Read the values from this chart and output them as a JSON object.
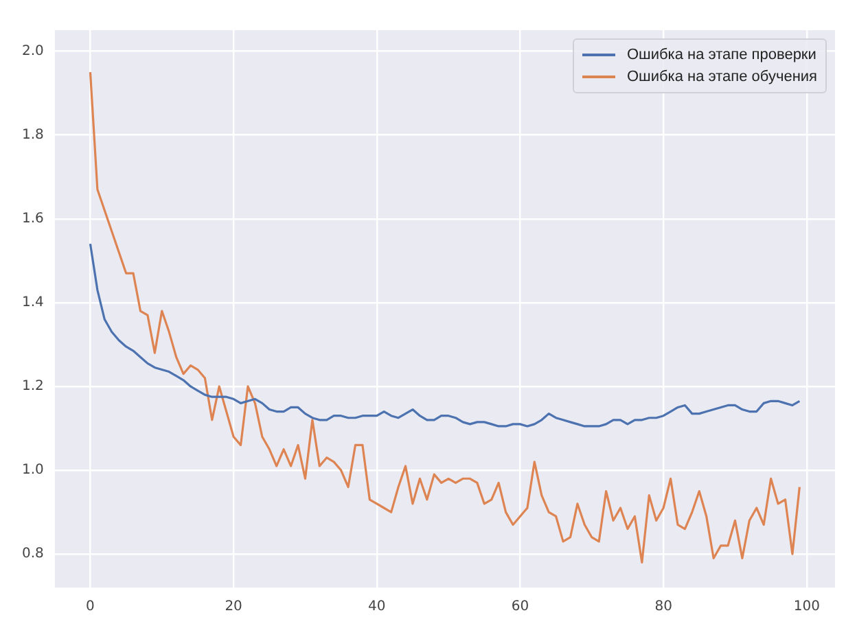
{
  "chart_data": {
    "type": "line",
    "x": [
      0,
      1,
      2,
      3,
      4,
      5,
      6,
      7,
      8,
      9,
      10,
      11,
      12,
      13,
      14,
      15,
      16,
      17,
      18,
      19,
      20,
      21,
      22,
      23,
      24,
      25,
      26,
      27,
      28,
      29,
      30,
      31,
      32,
      33,
      34,
      35,
      36,
      37,
      38,
      39,
      40,
      41,
      42,
      43,
      44,
      45,
      46,
      47,
      48,
      49,
      50,
      51,
      52,
      53,
      54,
      55,
      56,
      57,
      58,
      59,
      60,
      61,
      62,
      63,
      64,
      65,
      66,
      67,
      68,
      69,
      70,
      71,
      72,
      73,
      74,
      75,
      76,
      77,
      78,
      79,
      80,
      81,
      82,
      83,
      84,
      85,
      86,
      87,
      88,
      89,
      90,
      91,
      92,
      93,
      94,
      95,
      96,
      97,
      98,
      99
    ],
    "series": [
      {
        "name": "Ошибка на этапе проверки",
        "color": "#4c72b0",
        "values": [
          1.54,
          1.43,
          1.36,
          1.33,
          1.31,
          1.295,
          1.285,
          1.27,
          1.255,
          1.245,
          1.24,
          1.235,
          1.225,
          1.215,
          1.2,
          1.19,
          1.18,
          1.175,
          1.175,
          1.175,
          1.17,
          1.16,
          1.165,
          1.17,
          1.16,
          1.145,
          1.14,
          1.14,
          1.15,
          1.15,
          1.135,
          1.125,
          1.12,
          1.12,
          1.13,
          1.13,
          1.125,
          1.125,
          1.13,
          1.13,
          1.13,
          1.14,
          1.13,
          1.125,
          1.135,
          1.145,
          1.13,
          1.12,
          1.12,
          1.13,
          1.13,
          1.125,
          1.115,
          1.11,
          1.115,
          1.115,
          1.11,
          1.105,
          1.105,
          1.11,
          1.11,
          1.105,
          1.11,
          1.12,
          1.135,
          1.125,
          1.12,
          1.115,
          1.11,
          1.105,
          1.105,
          1.105,
          1.11,
          1.12,
          1.12,
          1.11,
          1.12,
          1.12,
          1.125,
          1.125,
          1.13,
          1.14,
          1.15,
          1.155,
          1.135,
          1.135,
          1.14,
          1.145,
          1.15,
          1.155,
          1.155,
          1.145,
          1.14,
          1.14,
          1.16,
          1.165,
          1.165,
          1.16,
          1.155,
          1.165
        ]
      },
      {
        "name": "Ошибка на этапе обучения",
        "color": "#dd8452",
        "values": [
          1.95,
          1.67,
          1.62,
          1.57,
          1.52,
          1.47,
          1.47,
          1.38,
          1.37,
          1.28,
          1.38,
          1.33,
          1.27,
          1.23,
          1.25,
          1.24,
          1.22,
          1.12,
          1.2,
          1.14,
          1.08,
          1.06,
          1.2,
          1.16,
          1.08,
          1.05,
          1.01,
          1.05,
          1.01,
          1.06,
          0.98,
          1.12,
          1.01,
          1.03,
          1.02,
          1.0,
          0.96,
          1.06,
          1.06,
          0.93,
          0.92,
          0.91,
          0.9,
          0.96,
          1.01,
          0.92,
          0.98,
          0.93,
          0.99,
          0.97,
          0.98,
          0.97,
          0.98,
          0.98,
          0.97,
          0.92,
          0.93,
          0.97,
          0.9,
          0.87,
          0.89,
          0.91,
          1.02,
          0.94,
          0.9,
          0.89,
          0.83,
          0.84,
          0.92,
          0.87,
          0.84,
          0.83,
          0.95,
          0.88,
          0.91,
          0.86,
          0.89,
          0.78,
          0.94,
          0.88,
          0.91,
          0.98,
          0.87,
          0.86,
          0.9,
          0.95,
          0.89,
          0.79,
          0.82,
          0.82,
          0.88,
          0.79,
          0.88,
          0.91,
          0.87,
          0.98,
          0.92,
          0.93,
          0.8,
          0.96
        ]
      }
    ],
    "xlim": [
      -4.95,
      103.95
    ],
    "xticks": [
      0,
      20,
      40,
      60,
      80,
      100
    ],
    "ylim": [
      0.72,
      2.05
    ],
    "yticks": [
      {
        "value": 0.8,
        "label": "0.8"
      },
      {
        "value": 1.0,
        "label": "1.0"
      },
      {
        "value": 1.2,
        "label": "1.2"
      },
      {
        "value": 1.4,
        "label": "1.4"
      },
      {
        "value": 1.6,
        "label": "1.6"
      },
      {
        "value": 1.8,
        "label": "1.8"
      },
      {
        "value": 2.0,
        "label": "2.0"
      }
    ],
    "grid": true,
    "legend": "top right",
    "marker": "none",
    "line_style": "solid"
  }
}
